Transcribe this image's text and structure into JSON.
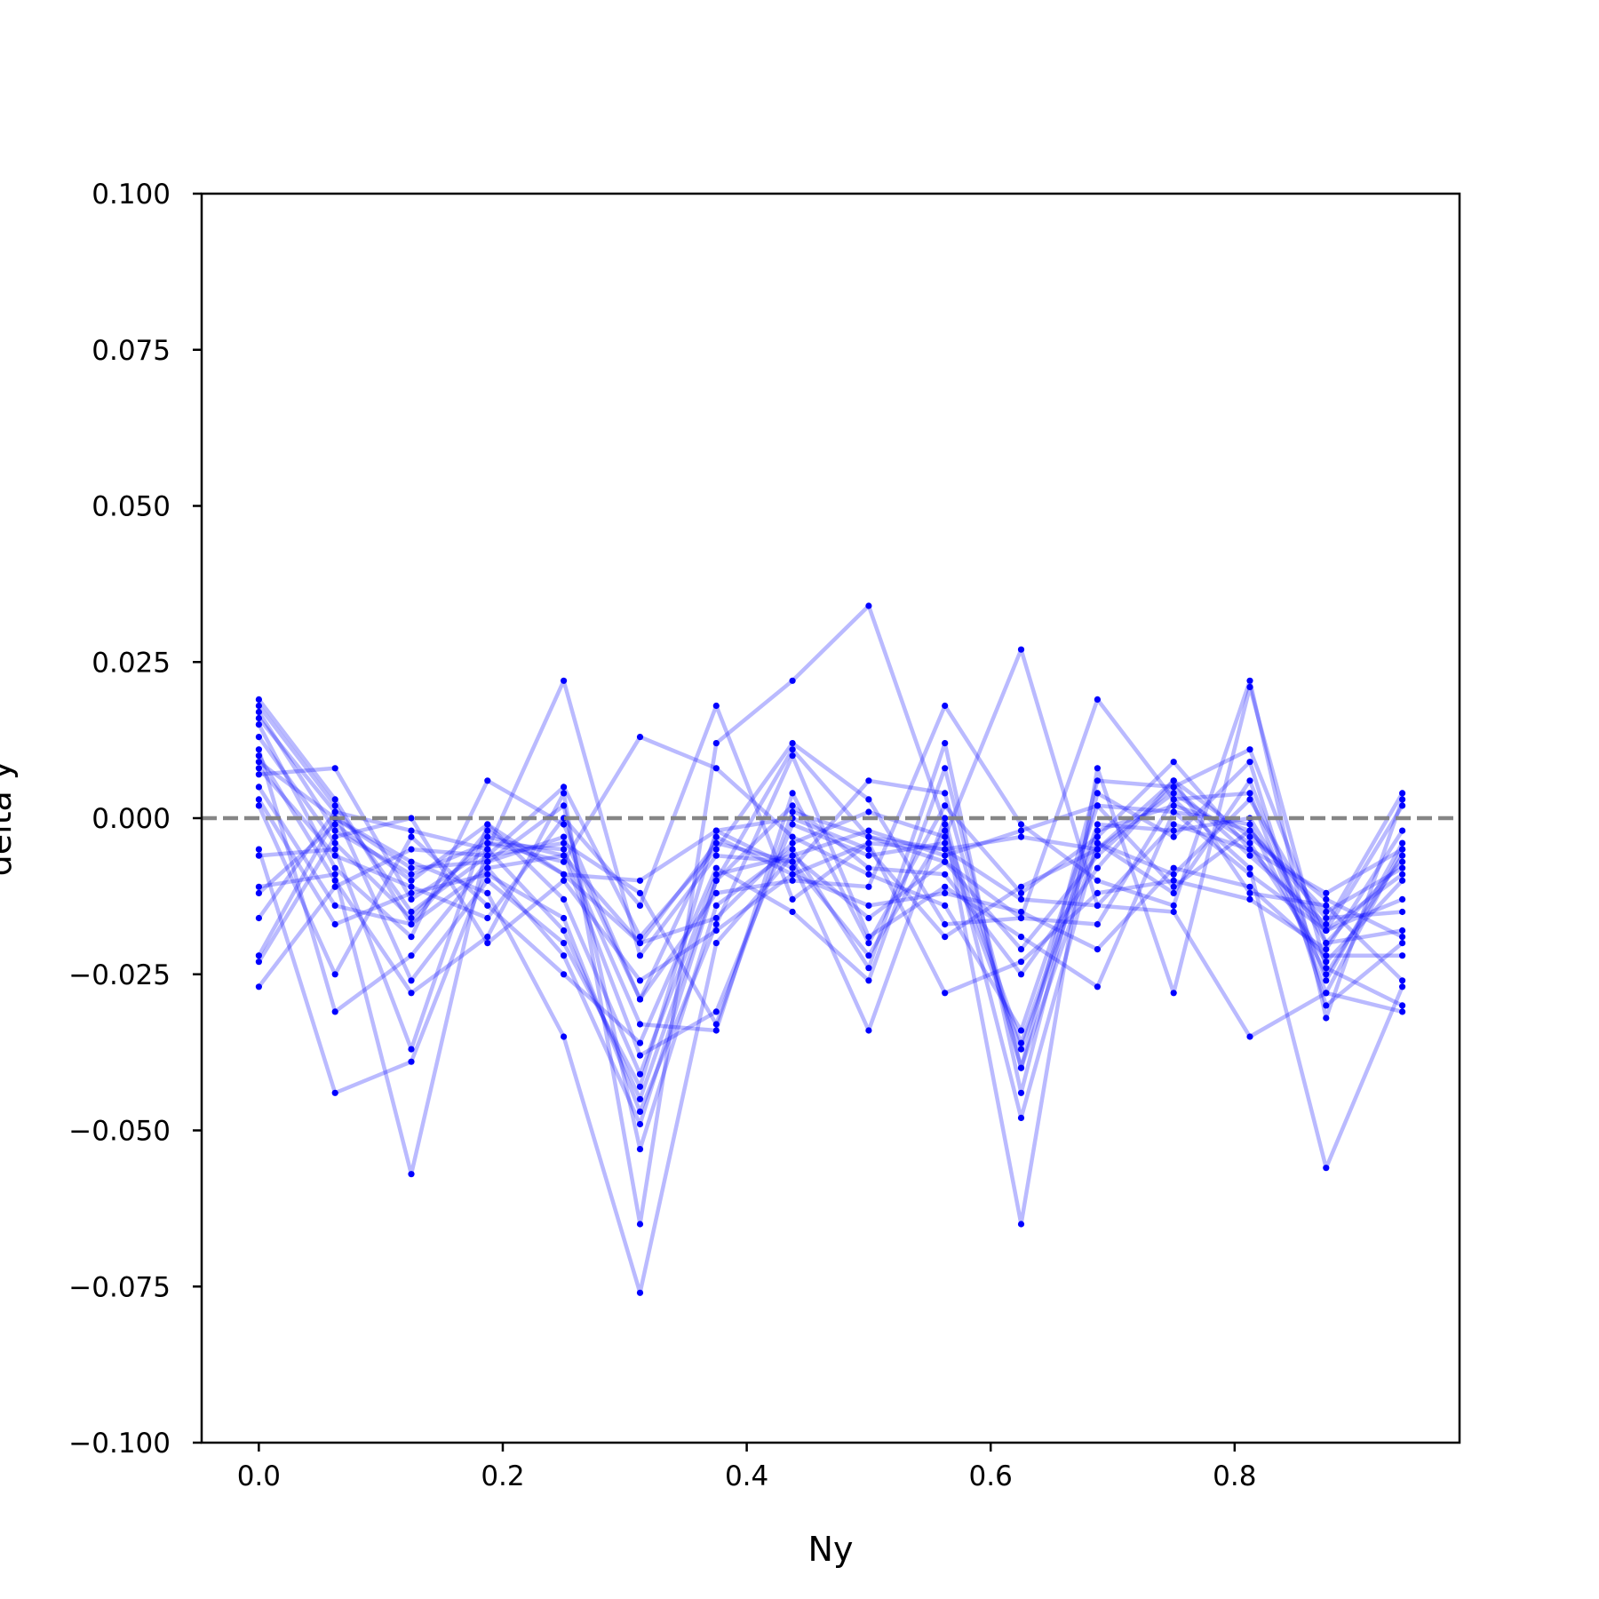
{
  "chart_data": {
    "type": "line",
    "title": "",
    "xlabel": "Ny",
    "ylabel": "delta y",
    "xlim": [
      -0.046875,
      0.984375
    ],
    "ylim": [
      -0.1,
      0.1
    ],
    "xticks": [
      {
        "value": 0.0,
        "label": "0.0"
      },
      {
        "value": 0.2,
        "label": "0.2"
      },
      {
        "value": 0.4,
        "label": "0.4"
      },
      {
        "value": 0.6,
        "label": "0.6"
      },
      {
        "value": 0.8,
        "label": "0.8"
      }
    ],
    "yticks": [
      {
        "value": 0.1,
        "label": "0.100"
      },
      {
        "value": 0.075,
        "label": "0.075"
      },
      {
        "value": 0.05,
        "label": "0.050"
      },
      {
        "value": 0.025,
        "label": "0.025"
      },
      {
        "value": 0.0,
        "label": "0.000"
      },
      {
        "value": -0.025,
        "label": "−0.025"
      },
      {
        "value": -0.05,
        "label": "−0.050"
      },
      {
        "value": -0.075,
        "label": "−0.075"
      },
      {
        "value": -0.1,
        "label": "−0.100"
      }
    ],
    "grid": false,
    "legend": "none",
    "reference_line": {
      "y": 0.0,
      "style": "dashed",
      "color": "#808080"
    },
    "series_color": "#0000ff",
    "x": [
      0.0,
      0.0625,
      0.125,
      0.1875,
      0.25,
      0.3125,
      0.375,
      0.4375,
      0.5,
      0.5625,
      0.625,
      0.6875,
      0.75,
      0.8125,
      0.875,
      0.9375
    ],
    "series": [
      {
        "values": [
          0.019,
          0.003,
          -0.017,
          -0.008,
          -0.022,
          -0.049,
          -0.01,
          0.011,
          -0.003,
          -0.005,
          -0.003,
          -0.005,
          0.004,
          -0.004,
          -0.023,
          -0.01
        ]
      },
      {
        "values": [
          0.018,
          0.002,
          -0.015,
          -0.006,
          0.005,
          -0.019,
          -0.005,
          0.012,
          0.003,
          -0.017,
          -0.016,
          0.019,
          0.003,
          0.004,
          -0.028,
          -0.005
        ]
      },
      {
        "values": [
          0.017,
          -0.002,
          -0.009,
          -0.004,
          -0.005,
          -0.033,
          -0.034,
          0.004,
          -0.02,
          0.002,
          -0.012,
          -0.003,
          0.009,
          -0.005,
          -0.018,
          0.002
        ]
      },
      {
        "values": [
          0.016,
          0.001,
          -0.026,
          -0.01,
          -0.02,
          -0.043,
          -0.002,
          -0.008,
          0.006,
          0.004,
          -0.04,
          0.006,
          0.005,
          0.011,
          -0.02,
          -0.018
        ]
      },
      {
        "values": [
          0.015,
          -0.008,
          -0.019,
          0.006,
          -0.001,
          -0.029,
          -0.012,
          -0.01,
          -0.011,
          0.018,
          -0.001,
          -0.01,
          -0.014,
          0.022,
          -0.032,
          0.003
        ]
      },
      {
        "values": [
          0.013,
          -0.004,
          -0.016,
          -0.003,
          -0.006,
          -0.038,
          -0.031,
          -0.001,
          -0.006,
          -0.004,
          -0.037,
          -0.002,
          0.002,
          -0.002,
          -0.015,
          -0.008
        ]
      },
      {
        "values": [
          0.011,
          -0.031,
          -0.022,
          -0.007,
          0.002,
          -0.053,
          -0.014,
          -0.005,
          -0.024,
          0.012,
          -0.044,
          0.004,
          -0.003,
          0.009,
          -0.03,
          -0.02
        ]
      },
      {
        "values": [
          0.01,
          -0.01,
          -0.028,
          -0.019,
          0.004,
          -0.065,
          0.012,
          0.022,
          0.034,
          -0.001,
          -0.065,
          0.008,
          -0.028,
          0.021,
          -0.024,
          -0.03
        ]
      },
      {
        "values": [
          0.009,
          0.0,
          -0.007,
          -0.012,
          -0.035,
          -0.076,
          -0.02,
          -0.006,
          -0.016,
          -0.007,
          -0.021,
          -0.006,
          0.005,
          -0.006,
          -0.017,
          0.004
        ]
      },
      {
        "values": [
          0.008,
          -0.006,
          -0.011,
          -0.016,
          0.0,
          -0.014,
          0.018,
          -0.013,
          -0.004,
          -0.028,
          -0.023,
          -0.012,
          -0.01,
          -0.013,
          -0.021,
          -0.002
        ]
      },
      {
        "values": [
          0.007,
          0.008,
          -0.013,
          -0.005,
          -0.018,
          -0.045,
          -0.01,
          0.002,
          -0.008,
          -0.009,
          -0.025,
          -0.008,
          0.006,
          -0.012,
          -0.014,
          -0.026
        ]
      },
      {
        "values": [
          0.005,
          -0.014,
          -0.017,
          -0.002,
          -0.009,
          -0.02,
          -0.004,
          -0.007,
          -0.034,
          0.0,
          -0.048,
          -0.004,
          -0.009,
          0.003,
          -0.018,
          -0.013
        ]
      },
      {
        "values": [
          0.003,
          -0.017,
          -0.012,
          -0.009,
          -0.016,
          -0.047,
          -0.017,
          0.01,
          -0.019,
          -0.011,
          -0.019,
          -0.027,
          0.001,
          -0.001,
          -0.025,
          -0.006
        ]
      },
      {
        "values": [
          0.002,
          -0.025,
          -0.003,
          -0.014,
          -0.025,
          -0.036,
          -0.008,
          -0.015,
          -0.026,
          0.008,
          -0.04,
          -0.004,
          -0.012,
          0.006,
          -0.026,
          -0.004
        ]
      },
      {
        "values": [
          -0.005,
          -0.044,
          -0.039,
          -0.008,
          -0.006,
          -0.02,
          -0.016,
          -0.004,
          0.001,
          -0.003,
          0.027,
          -0.014,
          -0.015,
          -0.035,
          -0.028,
          -0.031
        ]
      },
      {
        "values": [
          -0.006,
          -0.005,
          -0.037,
          -0.001,
          -0.009,
          -0.01,
          -0.002,
          0.0,
          -0.005,
          -0.019,
          -0.011,
          -0.005,
          0.006,
          -0.003,
          -0.013,
          -0.019
        ]
      },
      {
        "values": [
          -0.011,
          -0.009,
          -0.057,
          -0.004,
          -0.007,
          0.013,
          0.008,
          -0.003,
          -0.009,
          -0.014,
          -0.034,
          0.002,
          -0.011,
          -0.002,
          -0.016,
          -0.015
        ]
      },
      {
        "values": [
          -0.016,
          0.001,
          -0.002,
          -0.005,
          0.022,
          -0.022,
          -0.006,
          -0.007,
          -0.022,
          -0.002,
          -0.036,
          -0.001,
          -0.002,
          0.0,
          -0.02,
          -0.007
        ]
      },
      {
        "values": [
          -0.023,
          -0.003,
          0.0,
          -0.02,
          -0.01,
          -0.026,
          -0.018,
          -0.009,
          -0.014,
          -0.012,
          -0.015,
          -0.021,
          -0.008,
          -0.011,
          -0.022,
          -0.022
        ]
      },
      {
        "values": [
          -0.027,
          -0.011,
          -0.005,
          -0.006,
          -0.004,
          -0.012,
          -0.033,
          0.001,
          -0.003,
          -0.007,
          -0.016,
          -0.017,
          0.003,
          -0.008,
          -0.056,
          -0.027
        ]
      },
      {
        "values": [
          -0.022,
          0.0,
          -0.008,
          -0.007,
          -0.003,
          -0.029,
          -0.003,
          -0.009,
          -0.004,
          -0.005,
          -0.013,
          -0.014,
          -0.001,
          -0.005,
          -0.012,
          -0.005
        ]
      },
      {
        "values": [
          -0.012,
          -0.001,
          -0.01,
          -0.001,
          -0.013,
          -0.041,
          -0.009,
          -0.006,
          -0.002,
          -0.006,
          -0.002,
          0.002,
          0.001,
          -0.009,
          -0.018,
          -0.009
        ]
      }
    ]
  }
}
